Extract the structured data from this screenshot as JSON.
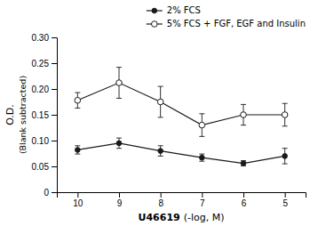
{
  "chart_data": {
    "type": "line",
    "categories": [
      "10",
      "9",
      "8",
      "7",
      "6",
      "5"
    ],
    "series": [
      {
        "name": "2% FCS",
        "color": "#1a1a1a",
        "marker": "circle",
        "values": [
          0.082,
          0.095,
          0.08,
          0.067,
          0.056,
          0.07
        ],
        "errors": [
          0.008,
          0.01,
          0.01,
          0.007,
          0.005,
          0.015
        ]
      },
      {
        "name": "5% FCS + FGF, EGF and Insulin",
        "color": "#1a1a1a",
        "marker": "open-circle",
        "values": [
          0.178,
          0.212,
          0.175,
          0.13,
          0.15,
          0.15
        ],
        "errors": [
          0.015,
          0.03,
          0.03,
          0.022,
          0.02,
          0.022
        ]
      }
    ],
    "xlabel": [
      "U46619",
      "(-log, M)"
    ],
    "ylabel": [
      "O.D.",
      "(Blank subtracted)"
    ],
    "ylim": [
      0,
      0.3
    ],
    "yticks": [
      0,
      0.05,
      {
        "value": 0.1,
        "label": "0.10"
      },
      0.15,
      {
        "value": 0.2,
        "label": "0.20"
      },
      0.25,
      {
        "value": 0.3,
        "label": "0.30"
      }
    ],
    "grid": false,
    "legend": "top-right"
  }
}
